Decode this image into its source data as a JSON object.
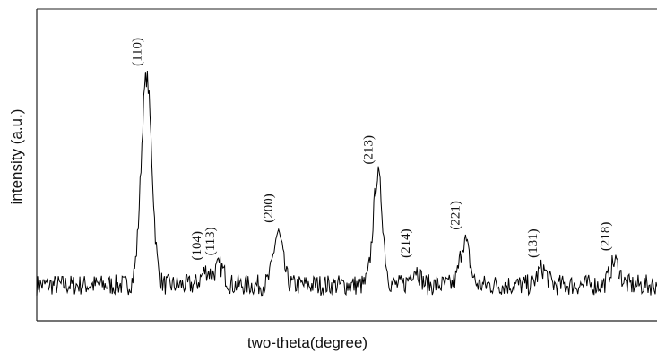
{
  "chart_data": {
    "type": "line",
    "xlabel": "two-theta(degree)",
    "ylabel": "intensity (a.u.)",
    "xlim": [
      0,
      100
    ],
    "ylim": [
      0,
      100
    ],
    "grid": false,
    "ticks": "none",
    "series": [
      {
        "peaks": [
          {
            "label": "(110)",
            "x": 17.7,
            "y": 92
          },
          {
            "label": "(104)",
            "x": 27.3,
            "y": 9
          },
          {
            "label": "(113)",
            "x": 29.5,
            "y": 11
          },
          {
            "label": "(200)",
            "x": 38.9,
            "y": 25
          },
          {
            "label": "(213)",
            "x": 55.0,
            "y": 50
          },
          {
            "label": "(214)",
            "x": 61.0,
            "y": 10
          },
          {
            "label": "(221)",
            "x": 69.0,
            "y": 22
          },
          {
            "label": "(131)",
            "x": 81.5,
            "y": 10
          },
          {
            "label": "(218)",
            "x": 93.2,
            "y": 13
          }
        ],
        "baseline": 3
      }
    ]
  },
  "axes": {
    "xlabel": "two-theta(degree)",
    "ylabel": "intensity (a.u.)"
  }
}
